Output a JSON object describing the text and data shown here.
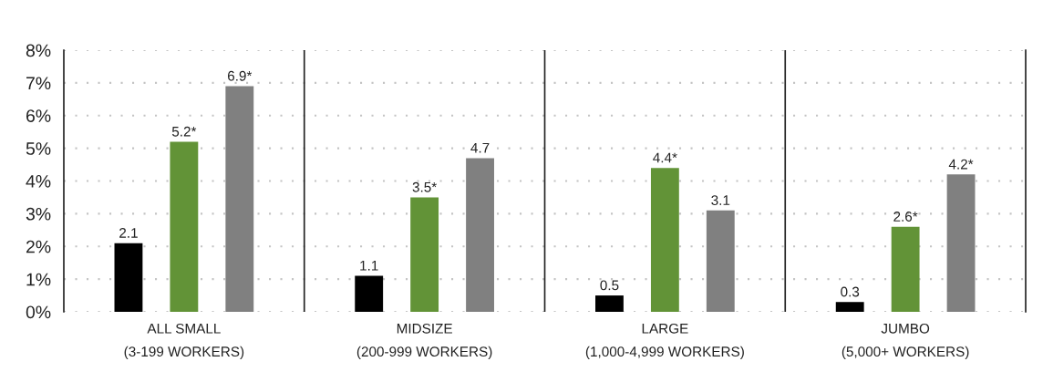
{
  "chart_data": {
    "type": "bar",
    "categories": [
      "ALL SMALL\n(3-199 WORKERS)",
      "MIDSIZE\n(200-999 WORKERS)",
      "LARGE\n(1,000-4,999 WORKERS)",
      "JUMBO\n(5,000+ WORKERS)"
    ],
    "series": [
      {
        "color": "#000000",
        "values": [
          2.1,
          1.1,
          0.5,
          0.3
        ],
        "value_labels": [
          "2.1",
          "1.1",
          "0.5",
          "0.3"
        ]
      },
      {
        "color": "#629337",
        "values": [
          5.2,
          3.5,
          4.4,
          2.6
        ],
        "value_labels": [
          "5.2*",
          "3.5*",
          "4.4*",
          "2.6*"
        ]
      },
      {
        "color": "#808080",
        "values": [
          6.9,
          4.7,
          3.1,
          4.2
        ],
        "value_labels": [
          "6.9*",
          "4.7",
          "3.1",
          "4.2*"
        ]
      }
    ],
    "ylim": [
      0,
      8
    ],
    "yticks": [
      {
        "value": 0,
        "label": "0%"
      },
      {
        "value": 1,
        "label": "1%"
      },
      {
        "value": 2,
        "label": "2%"
      },
      {
        "value": 3,
        "label": "3%"
      },
      {
        "value": 4,
        "label": "4%"
      },
      {
        "value": 5,
        "label": "5%"
      },
      {
        "value": 6,
        "label": "6%"
      },
      {
        "value": 7,
        "label": "7%"
      },
      {
        "value": 8,
        "label": "8%"
      }
    ],
    "grid": "y"
  }
}
